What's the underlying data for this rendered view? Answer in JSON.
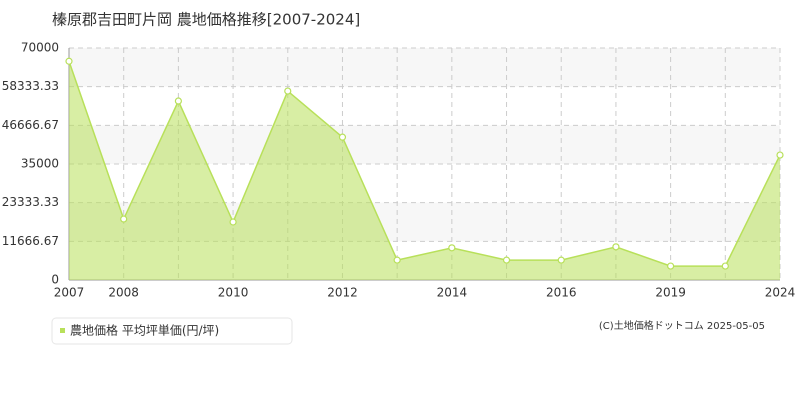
{
  "chart_data": {
    "type": "area",
    "title": "榛原郡吉田町片岡 農地価格推移[2007-2024]",
    "categories": [
      "2007",
      "2008",
      null,
      "2010",
      null,
      "2012",
      null,
      "2014",
      null,
      "2016",
      null,
      "2019",
      null,
      "2024"
    ],
    "series": [
      {
        "name": "農地価格 平均坪単価(円/坪)",
        "color": "#b8e05a",
        "values": [
          66000,
          18400,
          54000,
          17500,
          57000,
          43100,
          6000,
          9700,
          6000,
          6000,
          10000,
          4200,
          4200,
          37700
        ]
      }
    ],
    "ylim": [
      0,
      70000
    ],
    "yticks": [
      0,
      11666.67,
      23333.33,
      35000,
      46666.67,
      58333.33,
      70000
    ],
    "grid": true,
    "legend": "bottom-left",
    "copyright": "(C)土地価格ドットコム 2025-05-05"
  }
}
